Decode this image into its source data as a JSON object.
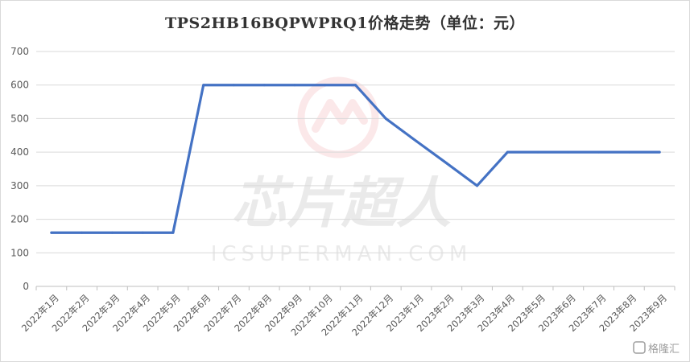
{
  "chart_data": {
    "type": "line",
    "title": "TPS2HB16BQPWPRQ1价格走势（单位：元）",
    "xlabel": "",
    "ylabel": "",
    "ylim": [
      0,
      700
    ],
    "yticks": [
      0,
      100,
      200,
      300,
      400,
      500,
      600,
      700
    ],
    "grid": true,
    "legend": "none",
    "categories": [
      "2022年1月",
      "2022年2月",
      "2022年3月",
      "2022年4月",
      "2022年5月",
      "2022年6月",
      "2022年7月",
      "2022年8月",
      "2022年9月",
      "2022年10月",
      "2022年11月",
      "2022年12月",
      "2023年1月",
      "2023年2月",
      "2023年3月",
      "2023年4月",
      "2023年5月",
      "2023年6月",
      "2023年7月",
      "2023年8月",
      "2023年9月"
    ],
    "series": [
      {
        "values": [
          160,
          160,
          160,
          160,
          160,
          600,
          600,
          600,
          600,
          600,
          600,
          500,
          433,
          367,
          300,
          400,
          400,
          400,
          400,
          400,
          400
        ]
      }
    ],
    "line_color": "#4472c4"
  },
  "watermark": {
    "cn": "芯片超人",
    "en": "ICSUPERMAN.COM",
    "logo_color": "#e8737a"
  },
  "corner_badge": {
    "text": "格隆汇"
  }
}
